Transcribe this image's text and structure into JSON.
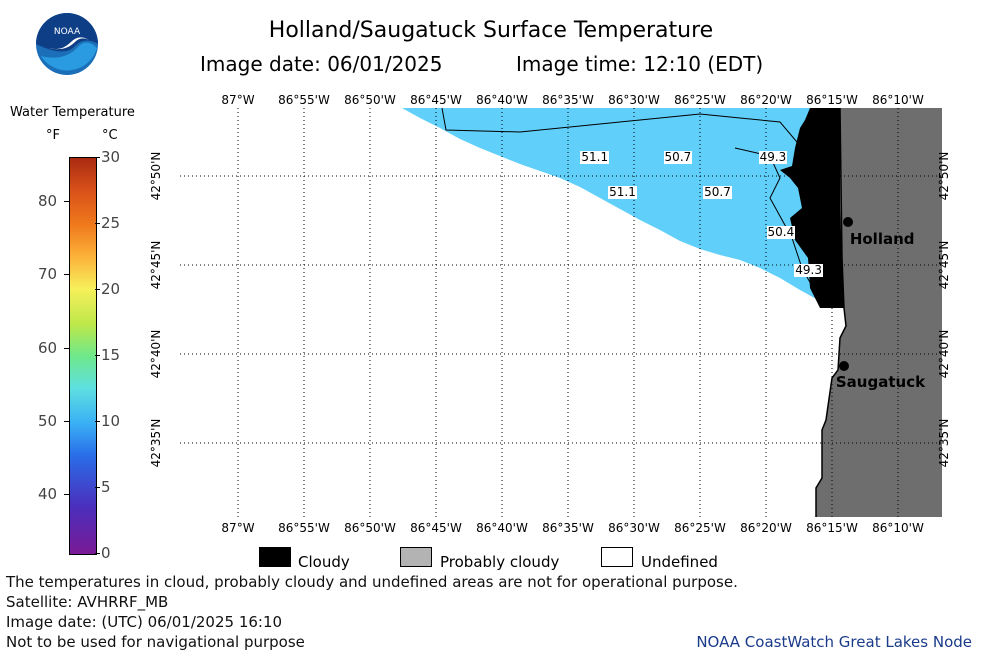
{
  "header": {
    "title": "Holland/Saugatuck Surface Temperature",
    "image_date": "Image date: 06/01/2025",
    "image_time": "Image time: 12:10 (EDT)"
  },
  "logo_text": "NOAA",
  "colorbar": {
    "title": "Water Temperature",
    "unit_f": "°F",
    "unit_c": "°C",
    "f_ticks": [
      "80",
      "70",
      "60",
      "50",
      "40"
    ],
    "c_ticks": [
      "30",
      "25",
      "20",
      "15",
      "10",
      "5",
      "0"
    ],
    "f_tick_values": [
      80,
      70,
      60,
      50,
      40
    ],
    "c_tick_values": [
      30,
      25,
      20,
      15,
      10,
      5,
      0
    ],
    "range_c": [
      0,
      30
    ]
  },
  "map": {
    "lon_labels": [
      "87°W",
      "86°55'W",
      "86°50'W",
      "86°45'W",
      "86°40'W",
      "86°35'W",
      "86°30'W",
      "86°25'W",
      "86°20'W",
      "86°15'W",
      "86°10'W"
    ],
    "lat_labels": [
      "42°50'N",
      "42°45'N",
      "42°40'N",
      "42°35'N"
    ],
    "temperatures": [
      {
        "value": "51.1",
        "lon": -86.55,
        "lat": 42.85
      },
      {
        "value": "50.7",
        "lon": -86.445,
        "lat": 42.85
      },
      {
        "value": "49.3",
        "lon": -86.325,
        "lat": 42.85
      },
      {
        "value": "51.1",
        "lon": -86.515,
        "lat": 42.817
      },
      {
        "value": "50.7",
        "lon": -86.395,
        "lat": 42.817
      },
      {
        "value": "50.4",
        "lon": -86.315,
        "lat": 42.78
      },
      {
        "value": "49.3",
        "lon": -86.28,
        "lat": 42.744
      }
    ],
    "cities": [
      {
        "name": "Holland",
        "lon": -86.23,
        "lat": 42.79
      },
      {
        "name": "Saugatuck",
        "lon": -86.235,
        "lat": 42.655
      }
    ],
    "land_color": "#6e6e6e",
    "cloud_color": "#000000",
    "water_color": "#60cffa"
  },
  "legend": {
    "cloudy": "Cloudy",
    "probably_cloudy": "Probably cloudy",
    "undefined": "Undefined"
  },
  "footer": {
    "note": "The temperatures in cloud, probably cloudy and undefined areas are not for operational purpose.",
    "satellite": "Satellite: AVHRRF_MB",
    "utc_date": "Image date: (UTC) 06/01/2025  16:10",
    "nav_warning": "Not to be used for navigational purpose",
    "credit": "NOAA CoastWatch Great Lakes Node"
  }
}
